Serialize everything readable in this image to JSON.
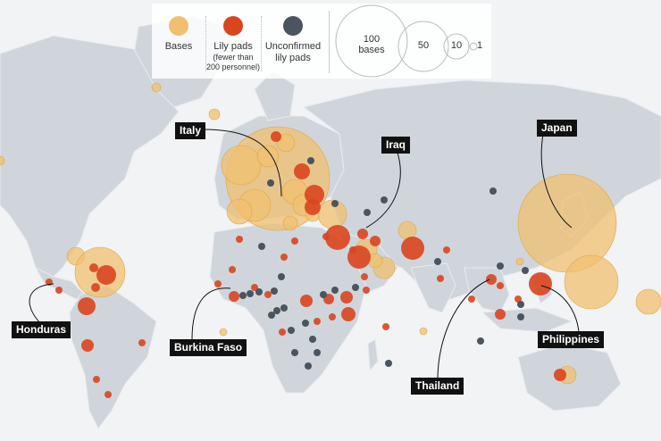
{
  "legend": {
    "bases": "Bases",
    "lily_pads": "Lily pads",
    "lily_pads_sub1": "(fewer than",
    "lily_pads_sub2": "200 personnel)",
    "unconfirmed1": "Unconfirmed",
    "unconfirmed2": "lily pads",
    "size_100a": "100",
    "size_100b": "bases",
    "size_50": "50",
    "size_10": "10",
    "size_1": "1"
  },
  "labels": {
    "italy": "Italy",
    "iraq": "Iraq",
    "japan": "Japan",
    "honduras": "Honduras",
    "burkina_faso": "Burkina Faso",
    "thailand": "Thailand",
    "philippines": "Philippines"
  },
  "colors": {
    "bases": "#f0c070",
    "lily_pads": "#d9451f",
    "unconfirmed": "#4a5560",
    "land": "#cfd5db",
    "ocean": "#f1f3f5"
  }
}
